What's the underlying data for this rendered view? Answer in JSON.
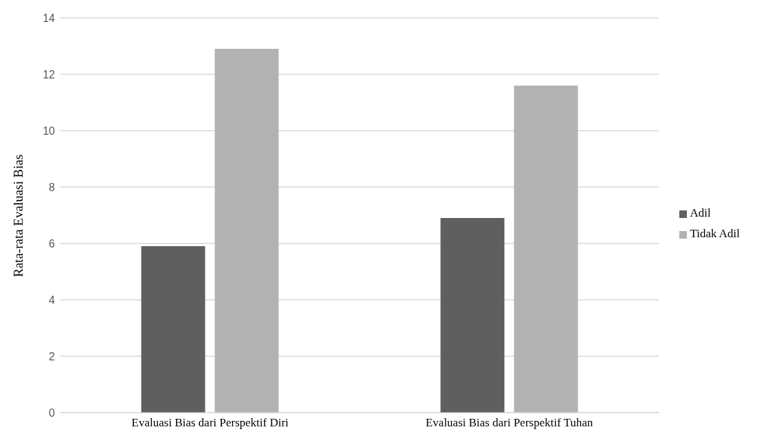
{
  "chart_data": {
    "type": "bar",
    "ylabel": "Rata-rata Evaluasi Bias",
    "categories": [
      "Evaluasi Bias dari Perspektif Diri",
      "Evaluasi Bias dari Perspektif Tuhan"
    ],
    "series": [
      {
        "name": "Adil",
        "color": "#5f5f5f",
        "values": [
          5.9,
          6.9
        ]
      },
      {
        "name": "Tidak Adil",
        "color": "#b2b2b2",
        "values": [
          12.9,
          11.6
        ]
      }
    ],
    "ylim": [
      0,
      14
    ],
    "yticks": [
      0,
      2,
      4,
      6,
      8,
      10,
      12,
      14
    ],
    "grid": "y",
    "legend": "right"
  }
}
